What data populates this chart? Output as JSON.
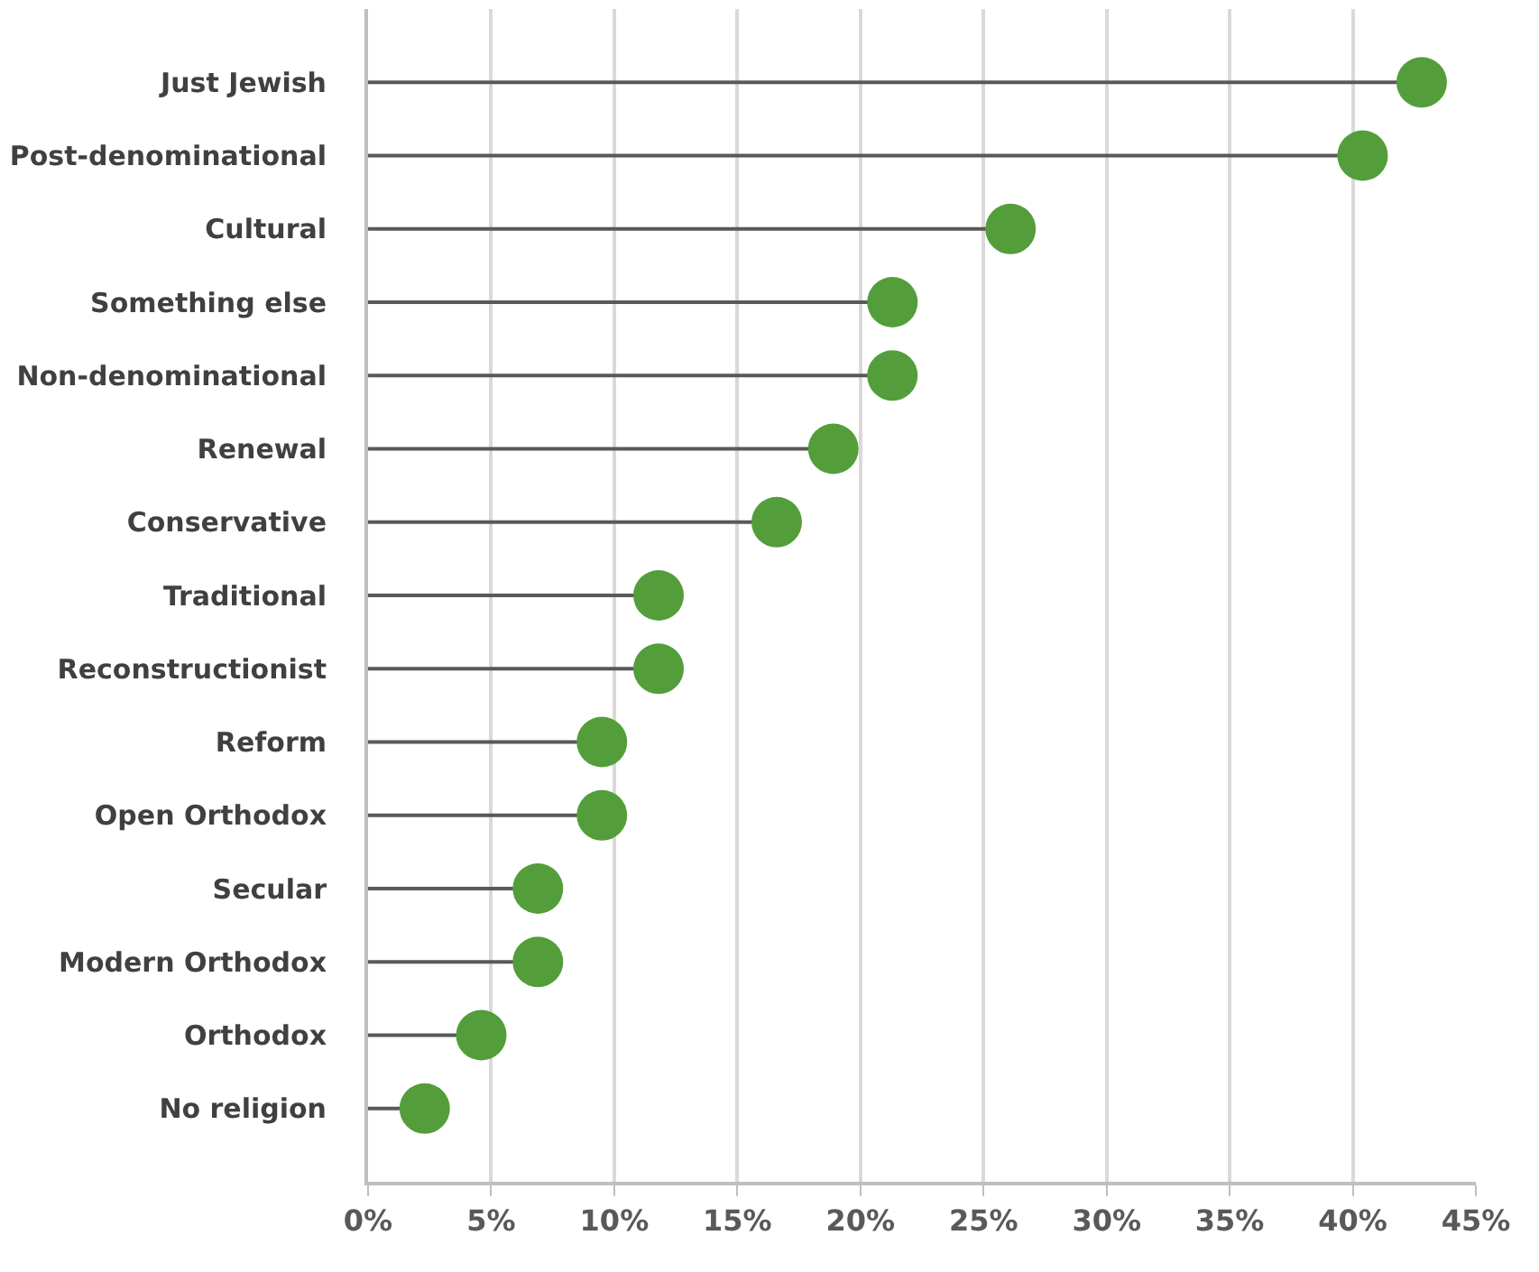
{
  "chart_data": {
    "type": "lollipop",
    "orientation": "horizontal",
    "categories": [
      "Just Jewish",
      "Post-denominational",
      "Cultural",
      "Something else",
      "Non-denominational",
      "Renewal",
      "Conservative",
      "Traditional",
      "Reconstructionist",
      "Reform",
      "Open Orthodox",
      "Secular",
      "Modern Orthodox",
      "Orthodox",
      "No religion"
    ],
    "values": [
      42.8,
      40.4,
      26.1,
      21.3,
      21.3,
      18.9,
      16.6,
      11.8,
      11.8,
      9.5,
      9.5,
      6.9,
      6.9,
      4.6,
      2.3
    ],
    "color": "#539e3a",
    "xlim": [
      0,
      45
    ],
    "xticks": [
      {
        "value": 0,
        "label": "0%"
      },
      {
        "value": 5,
        "label": "5%"
      },
      {
        "value": 10,
        "label": "10%"
      },
      {
        "value": 15,
        "label": "15%"
      },
      {
        "value": 20,
        "label": "20%"
      },
      {
        "value": 25,
        "label": "25%"
      },
      {
        "value": 30,
        "label": "30%"
      },
      {
        "value": 35,
        "label": "35%"
      },
      {
        "value": 40,
        "label": "40%"
      },
      {
        "value": 45,
        "label": "45%"
      }
    ],
    "grid": "x",
    "marker": "circle"
  }
}
